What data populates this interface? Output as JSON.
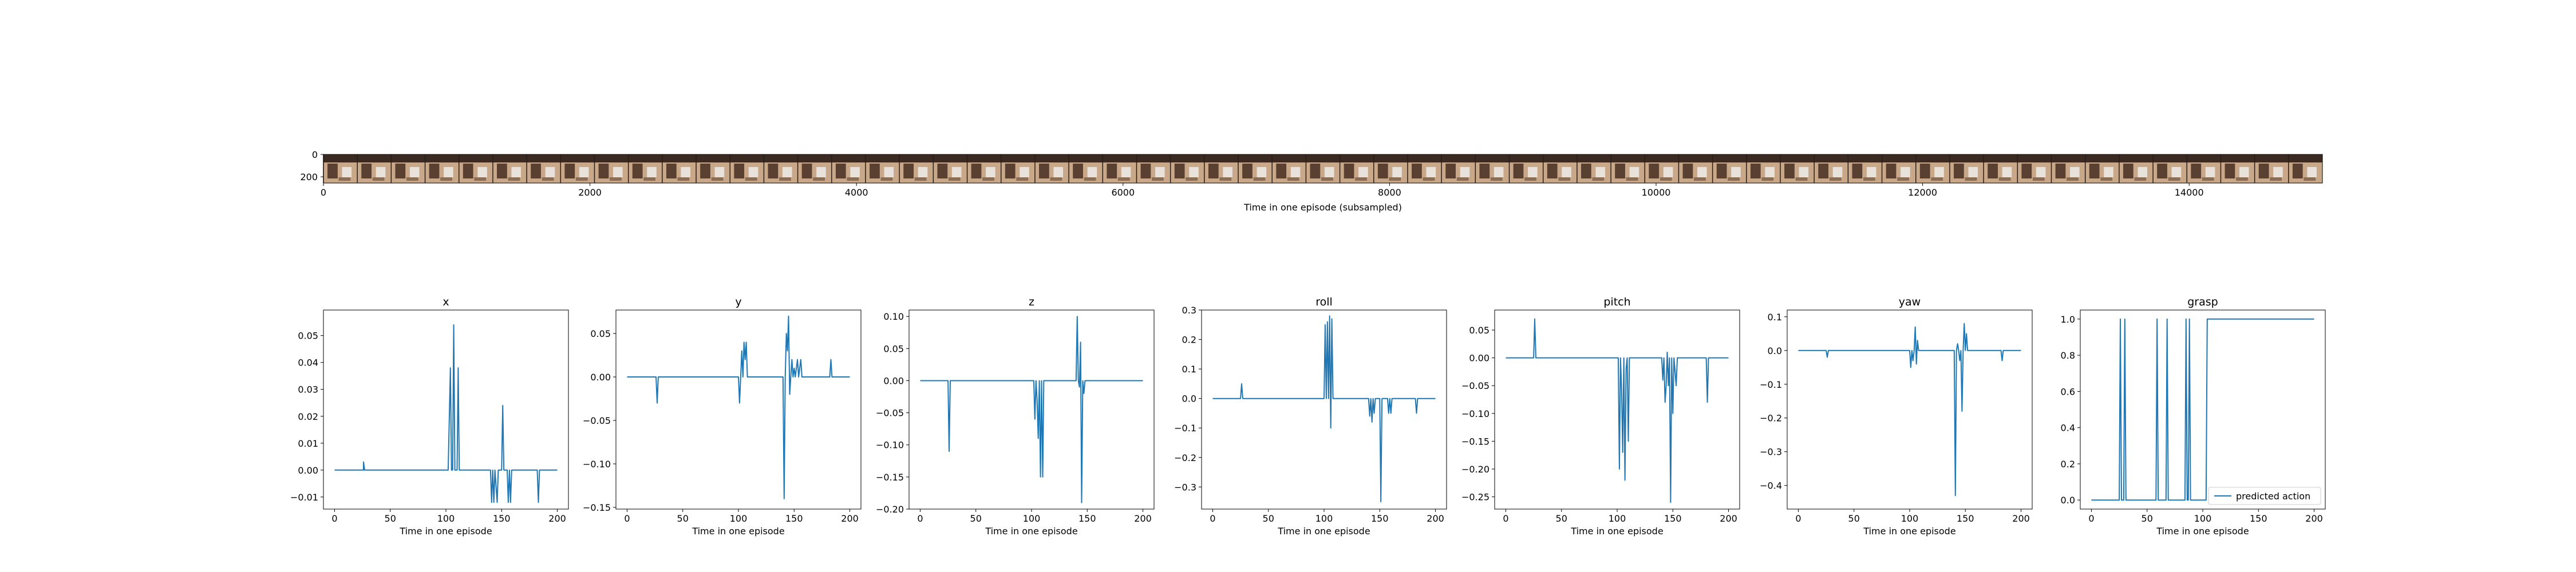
{
  "chart_data": [
    {
      "type": "image-strip",
      "xlabel": "Time in one episode (subsampled)",
      "xlim": [
        0,
        15000
      ],
      "ylim": [
        256,
        0
      ],
      "x_ticks": [
        0,
        2000,
        4000,
        6000,
        8000,
        10000,
        12000,
        14000
      ],
      "y_ticks": [
        0,
        200
      ],
      "frame_count": 59,
      "frame_width": 256
    },
    {
      "type": "line",
      "title": "x",
      "xlabel": "Time in one episode",
      "xlim": [
        -10,
        210
      ],
      "ylim": [
        -0.0145,
        0.0595
      ],
      "x_ticks": [
        0,
        50,
        100,
        150,
        200
      ],
      "y_ticks": [
        -0.01,
        0.0,
        0.01,
        0.02,
        0.03,
        0.04,
        0.05
      ],
      "y_tick_labels": [
        "−0.01",
        "0.00",
        "0.01",
        "0.02",
        "0.03",
        "0.04",
        "0.05"
      ],
      "series": [
        {
          "color": "#1f77b4",
          "points": [
            [
              0,
              0.0
            ],
            [
              26,
              0.0
            ],
            [
              26,
              0.003
            ],
            [
              27,
              0.0
            ],
            [
              102,
              0.0
            ],
            [
              104,
              0.038
            ],
            [
              105,
              0.0
            ],
            [
              106,
              0.0
            ],
            [
              107,
              0.054
            ],
            [
              108,
              0.0
            ],
            [
              110,
              0.0
            ],
            [
              111,
              0.038
            ],
            [
              112,
              0.0
            ],
            [
              140,
              0.0
            ],
            [
              141,
              -0.012
            ],
            [
              142,
              0.0
            ],
            [
              143,
              -0.012
            ],
            [
              144,
              0.0
            ],
            [
              146,
              -0.012
            ],
            [
              147,
              0.0
            ],
            [
              150,
              0.0
            ],
            [
              151,
              0.024
            ],
            [
              152,
              0.0
            ],
            [
              155,
              0.0
            ],
            [
              156,
              -0.012
            ],
            [
              157,
              0.0
            ],
            [
              158,
              -0.012
            ],
            [
              159,
              0.0
            ],
            [
              182,
              0.0
            ],
            [
              183,
              -0.012
            ],
            [
              184,
              0.0
            ],
            [
              200,
              0.0
            ]
          ]
        }
      ]
    },
    {
      "type": "line",
      "title": "y",
      "xlabel": "Time in one episode",
      "xlim": [
        -10,
        210
      ],
      "ylim": [
        -0.152,
        0.077
      ],
      "x_ticks": [
        0,
        50,
        100,
        150,
        200
      ],
      "y_ticks": [
        -0.15,
        -0.1,
        -0.05,
        0.0,
        0.05
      ],
      "y_tick_labels": [
        "−0.15",
        "−0.10",
        "−0.05",
        "0.00",
        "0.05"
      ],
      "series": [
        {
          "color": "#1f77b4",
          "points": [
            [
              0,
              0.0
            ],
            [
              26,
              0.0
            ],
            [
              27,
              -0.03
            ],
            [
              28,
              0.0
            ],
            [
              100,
              0.0
            ],
            [
              101,
              -0.03
            ],
            [
              102,
              0.0
            ],
            [
              103,
              0.03
            ],
            [
              104,
              0.0
            ],
            [
              105,
              0.04
            ],
            [
              106,
              0.02
            ],
            [
              107,
              0.04
            ],
            [
              108,
              0.0
            ],
            [
              140,
              0.0
            ],
            [
              141,
              -0.14
            ],
            [
              142,
              0.0
            ],
            [
              143,
              0.05
            ],
            [
              144,
              0.03
            ],
            [
              145,
              0.07
            ],
            [
              146,
              -0.02
            ],
            [
              147,
              0.0
            ],
            [
              148,
              0.02
            ],
            [
              149,
              0.0
            ],
            [
              150,
              0.01
            ],
            [
              151,
              0.0
            ],
            [
              153,
              0.02
            ],
            [
              154,
              0.0
            ],
            [
              156,
              0.02
            ],
            [
              157,
              0.0
            ],
            [
              182,
              0.0
            ],
            [
              183,
              0.02
            ],
            [
              184,
              0.0
            ],
            [
              200,
              0.0
            ]
          ]
        }
      ]
    },
    {
      "type": "line",
      "title": "z",
      "xlabel": "Time in one episode",
      "xlim": [
        -10,
        210
      ],
      "ylim": [
        -0.2,
        0.11
      ],
      "x_ticks": [
        0,
        50,
        100,
        150,
        200
      ],
      "y_ticks": [
        -0.2,
        -0.15,
        -0.1,
        -0.05,
        0.0,
        0.05,
        0.1
      ],
      "y_tick_labels": [
        "−0.20",
        "−0.15",
        "−0.10",
        "−0.05",
        "0.00",
        "0.05",
        "0.10"
      ],
      "series": [
        {
          "color": "#1f77b4",
          "points": [
            [
              0,
              0.0
            ],
            [
              25,
              0.0
            ],
            [
              26,
              -0.11
            ],
            [
              27,
              0.0
            ],
            [
              102,
              0.0
            ],
            [
              103,
              -0.06
            ],
            [
              104,
              0.0
            ],
            [
              105,
              -0.03
            ],
            [
              106,
              -0.09
            ],
            [
              107,
              0.0
            ],
            [
              108,
              -0.15
            ],
            [
              109,
              0.0
            ],
            [
              110,
              -0.15
            ],
            [
              111,
              0.0
            ],
            [
              140,
              0.0
            ],
            [
              141,
              0.1
            ],
            [
              142,
              0.0
            ],
            [
              143,
              -0.01
            ],
            [
              144,
              0.06
            ],
            [
              145,
              -0.19
            ],
            [
              146,
              0.0
            ],
            [
              147,
              -0.02
            ],
            [
              148,
              0.0
            ],
            [
              200,
              0.0
            ]
          ]
        }
      ]
    },
    {
      "type": "line",
      "title": "roll",
      "xlabel": "Time in one episode",
      "xlim": [
        -10,
        210
      ],
      "ylim": [
        -0.375,
        0.3
      ],
      "x_ticks": [
        0,
        50,
        100,
        150,
        200
      ],
      "y_ticks": [
        -0.3,
        -0.2,
        -0.1,
        0.0,
        0.1,
        0.2,
        0.3
      ],
      "y_tick_labels": [
        "−0.3",
        "−0.2",
        "−0.1",
        "0.0",
        "0.1",
        "0.2",
        "0.3"
      ],
      "series": [
        {
          "color": "#1f77b4",
          "points": [
            [
              0,
              0.0
            ],
            [
              25,
              0.0
            ],
            [
              26,
              0.05
            ],
            [
              27,
              0.0
            ],
            [
              100,
              0.0
            ],
            [
              101,
              0.25
            ],
            [
              102,
              0.0
            ],
            [
              103,
              0.26
            ],
            [
              104,
              0.0
            ],
            [
              105,
              0.28
            ],
            [
              106,
              -0.1
            ],
            [
              107,
              0.27
            ],
            [
              108,
              0.0
            ],
            [
              140,
              0.0
            ],
            [
              141,
              -0.06
            ],
            [
              142,
              0.0
            ],
            [
              143,
              -0.08
            ],
            [
              144,
              0.0
            ],
            [
              145,
              -0.05
            ],
            [
              146,
              0.0
            ],
            [
              150,
              0.0
            ],
            [
              151,
              -0.35
            ],
            [
              152,
              0.0
            ],
            [
              157,
              0.0
            ],
            [
              158,
              -0.05
            ],
            [
              159,
              0.0
            ],
            [
              160,
              -0.05
            ],
            [
              161,
              0.0
            ],
            [
              182,
              0.0
            ],
            [
              183,
              -0.05
            ],
            [
              184,
              0.0
            ],
            [
              200,
              0.0
            ]
          ]
        }
      ]
    },
    {
      "type": "line",
      "title": "pitch",
      "xlabel": "Time in one episode",
      "xlim": [
        -10,
        210
      ],
      "ylim": [
        -0.272,
        0.086
      ],
      "x_ticks": [
        0,
        50,
        100,
        150,
        200
      ],
      "y_ticks": [
        -0.25,
        -0.2,
        -0.15,
        -0.1,
        -0.05,
        0.0,
        0.05
      ],
      "y_tick_labels": [
        "−0.25",
        "−0.20",
        "−0.15",
        "−0.10",
        "−0.05",
        "0.00",
        "0.05"
      ],
      "series": [
        {
          "color": "#1f77b4",
          "points": [
            [
              0,
              0.0
            ],
            [
              25,
              0.0
            ],
            [
              26,
              0.07
            ],
            [
              27,
              0.0
            ],
            [
              101,
              0.0
            ],
            [
              102,
              -0.2
            ],
            [
              103,
              0.0
            ],
            [
              104,
              -0.06
            ],
            [
              105,
              -0.17
            ],
            [
              106,
              0.0
            ],
            [
              107,
              -0.22
            ],
            [
              108,
              -0.02
            ],
            [
              109,
              0.0
            ],
            [
              110,
              -0.15
            ],
            [
              111,
              0.0
            ],
            [
              140,
              0.0
            ],
            [
              141,
              -0.04
            ],
            [
              142,
              0.0
            ],
            [
              143,
              -0.08
            ],
            [
              144,
              -0.05
            ],
            [
              145,
              0.01
            ],
            [
              146,
              -0.05
            ],
            [
              147,
              0.0
            ],
            [
              148,
              -0.26
            ],
            [
              149,
              0.0
            ],
            [
              150,
              -0.1
            ],
            [
              151,
              0.0
            ],
            [
              153,
              -0.05
            ],
            [
              154,
              0.0
            ],
            [
              180,
              0.0
            ],
            [
              181,
              -0.08
            ],
            [
              182,
              0.0
            ],
            [
              200,
              0.0
            ]
          ]
        }
      ]
    },
    {
      "type": "line",
      "title": "yaw",
      "xlabel": "Time in one episode",
      "xlim": [
        -10,
        210
      ],
      "ylim": [
        -0.47,
        0.12
      ],
      "x_ticks": [
        0,
        50,
        100,
        150,
        200
      ],
      "y_ticks": [
        -0.4,
        -0.3,
        -0.2,
        -0.1,
        0.0,
        0.1
      ],
      "y_tick_labels": [
        "−0.4",
        "−0.3",
        "−0.2",
        "−0.1",
        "0.0",
        "0.1"
      ],
      "series": [
        {
          "color": "#1f77b4",
          "points": [
            [
              0,
              0.0
            ],
            [
              25,
              0.0
            ],
            [
              26,
              -0.02
            ],
            [
              27,
              0.0
            ],
            [
              100,
              0.0
            ],
            [
              101,
              -0.05
            ],
            [
              102,
              0.0
            ],
            [
              103,
              -0.03
            ],
            [
              104,
              0.0
            ],
            [
              105,
              0.07
            ],
            [
              106,
              -0.04
            ],
            [
              107,
              0.03
            ],
            [
              108,
              0.0
            ],
            [
              140,
              0.0
            ],
            [
              141,
              -0.43
            ],
            [
              142,
              0.0
            ],
            [
              143,
              0.02
            ],
            [
              144,
              0.0
            ],
            [
              145,
              -0.03
            ],
            [
              146,
              0.0
            ],
            [
              147,
              -0.18
            ],
            [
              148,
              0.0
            ],
            [
              149,
              0.08
            ],
            [
              150,
              0.0
            ],
            [
              151,
              0.05
            ],
            [
              152,
              0.0
            ],
            [
              182,
              0.0
            ],
            [
              183,
              -0.03
            ],
            [
              184,
              0.0
            ],
            [
              200,
              0.0
            ]
          ]
        }
      ]
    },
    {
      "type": "line",
      "title": "grasp",
      "xlabel": "Time in one episode",
      "xlim": [
        -10,
        210
      ],
      "ylim": [
        -0.05,
        1.05
      ],
      "x_ticks": [
        0,
        50,
        100,
        150,
        200
      ],
      "y_ticks": [
        0.0,
        0.2,
        0.4,
        0.6,
        0.8,
        1.0
      ],
      "y_tick_labels": [
        "0.0",
        "0.2",
        "0.4",
        "0.6",
        "0.8",
        "1.0"
      ],
      "legend": {
        "label": "predicted action",
        "position": "lower right"
      },
      "series": [
        {
          "name": "predicted action",
          "color": "#1f77b4",
          "points": [
            [
              0,
              0.0
            ],
            [
              25,
              0.0
            ],
            [
              26,
              1.0
            ],
            [
              27,
              0.0
            ],
            [
              29,
              0.0
            ],
            [
              30,
              1.0
            ],
            [
              31,
              0.0
            ],
            [
              58,
              0.0
            ],
            [
              59,
              1.0
            ],
            [
              60,
              0.0
            ],
            [
              67,
              0.0
            ],
            [
              68,
              1.0
            ],
            [
              69,
              0.0
            ],
            [
              84,
              0.0
            ],
            [
              85,
              1.0
            ],
            [
              86,
              0.0
            ],
            [
              87,
              0.0
            ],
            [
              88,
              1.0
            ],
            [
              89,
              0.0
            ],
            [
              103,
              0.0
            ],
            [
              104,
              1.0
            ],
            [
              200,
              1.0
            ]
          ]
        }
      ]
    }
  ]
}
